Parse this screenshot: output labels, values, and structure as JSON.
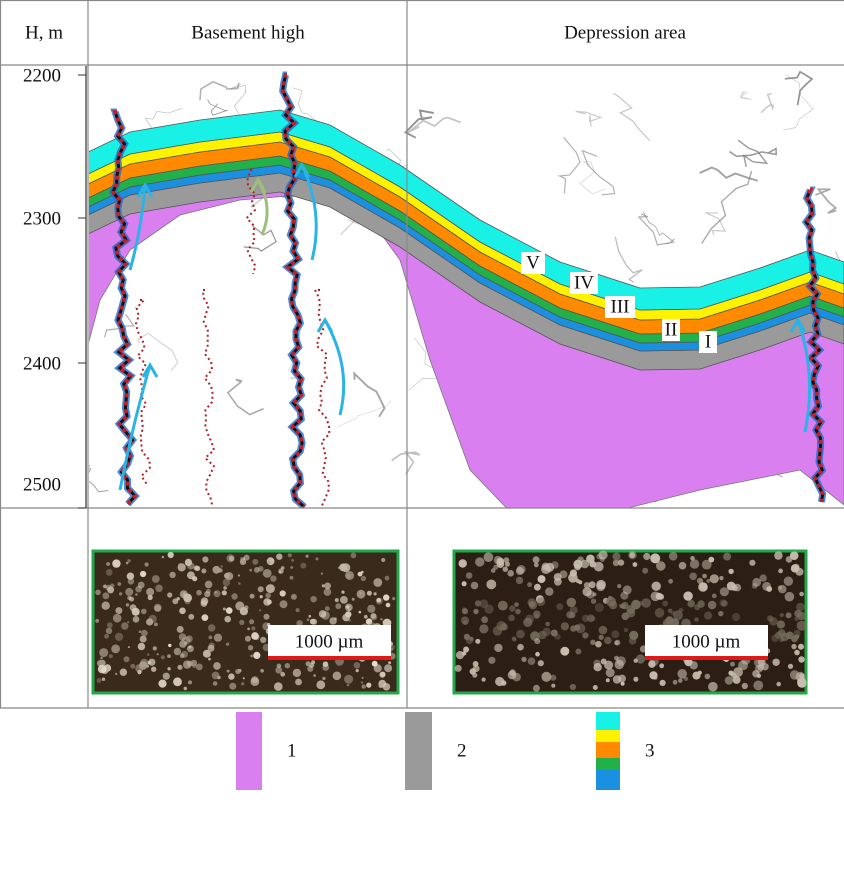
{
  "header": {
    "depth_label": "H, m",
    "columns": [
      "Basement high",
      "Depression area"
    ]
  },
  "depth_ticks": [
    2200,
    2300,
    2400,
    2500
  ],
  "section": {
    "layer_labels": [
      "V",
      "IV",
      "III",
      "II",
      "I"
    ]
  },
  "micrographs": [
    {
      "scale_label": "1000 µm"
    },
    {
      "scale_label": "1000 µm"
    }
  ],
  "legend": [
    "1",
    "2",
    "3"
  ]
}
